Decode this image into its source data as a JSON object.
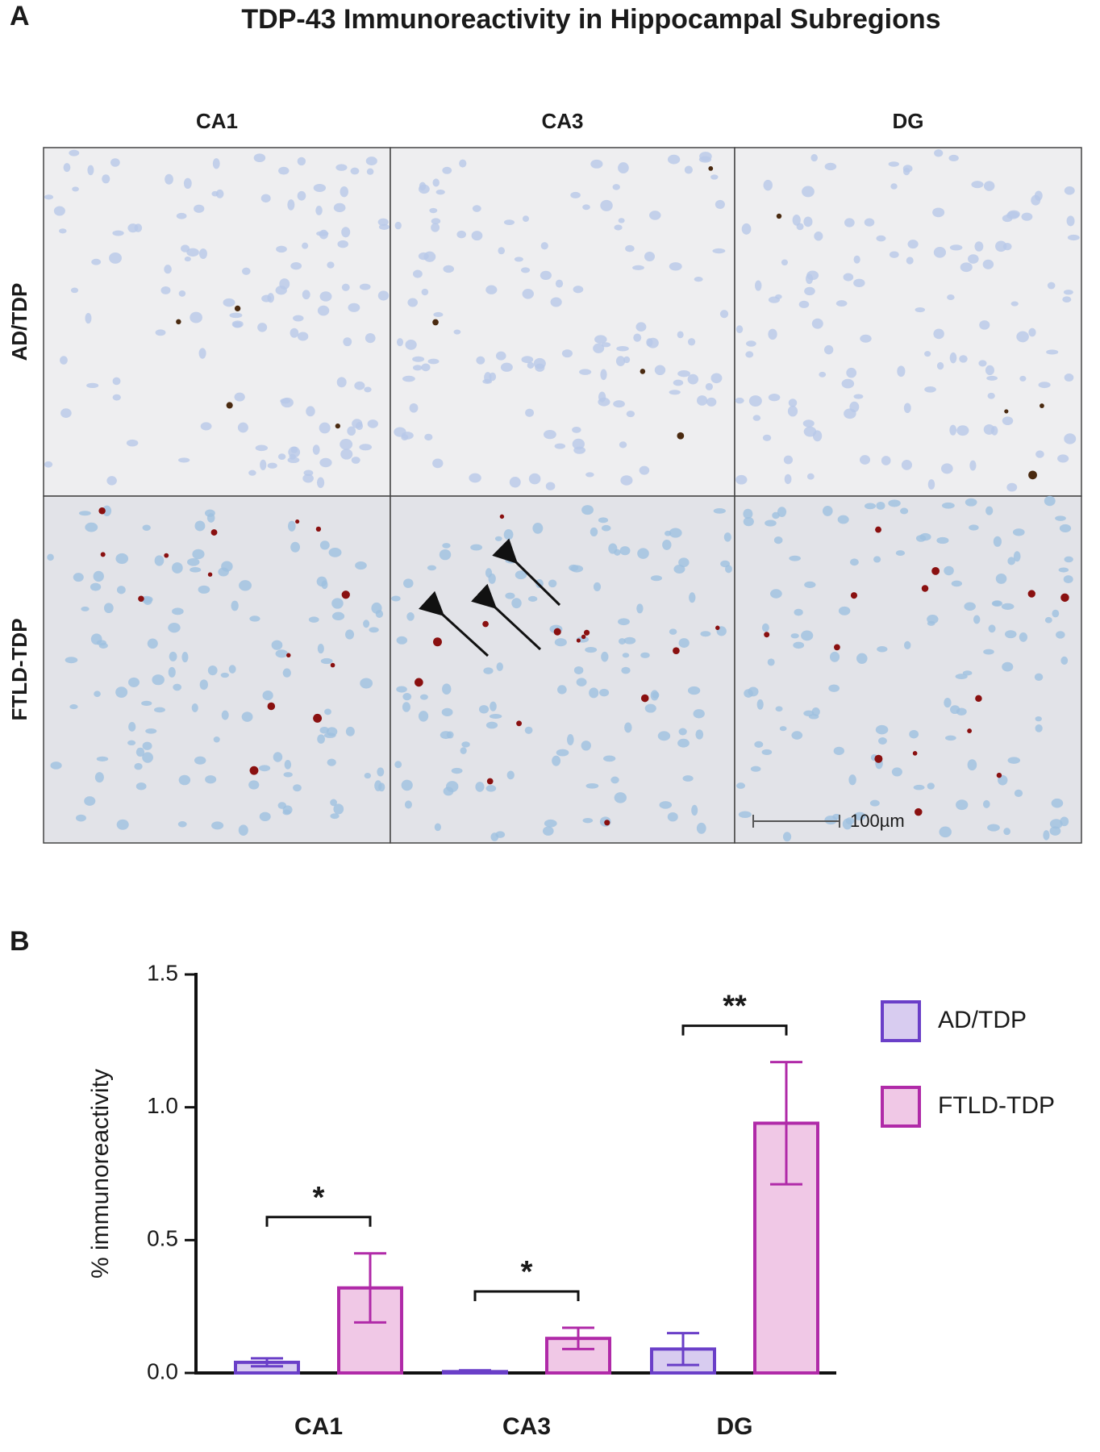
{
  "panel_a": {
    "label": "A",
    "title": "TDP-43 Immunoreactivity in Hippocampal Subregions",
    "columns": [
      "CA1",
      "CA3",
      "DG"
    ],
    "rows": [
      "AD/TDP",
      "FTLD-TDP"
    ],
    "scale_bar": "100µm"
  },
  "chart_data": {
    "type": "bar",
    "panel_label": "B",
    "ylabel": "% immunoreactivity",
    "categories": [
      "CA1",
      "CA3",
      "DG"
    ],
    "series": [
      {
        "name": "AD/TDP",
        "color": "#6a3fc8",
        "fill": "#d8ccf0",
        "values": [
          0.04,
          0.005,
          0.09
        ],
        "errors": [
          0.015,
          0.005,
          0.06
        ]
      },
      {
        "name": "FTLD-TDP",
        "color": "#b02aa8",
        "fill": "#f0c8e6",
        "values": [
          0.32,
          0.13,
          0.94
        ],
        "errors": [
          0.13,
          0.04,
          0.23
        ]
      }
    ],
    "significance": [
      "*",
      "*",
      "**"
    ],
    "ylim": [
      0,
      1.5
    ],
    "yticks": [
      {
        "value": 0,
        "label": "0.0"
      },
      {
        "value": 0.5,
        "label": "0.5"
      },
      {
        "value": 1,
        "label": "1.0"
      },
      {
        "value": 1.5,
        "label": "1.5"
      }
    ],
    "legend": "right"
  }
}
